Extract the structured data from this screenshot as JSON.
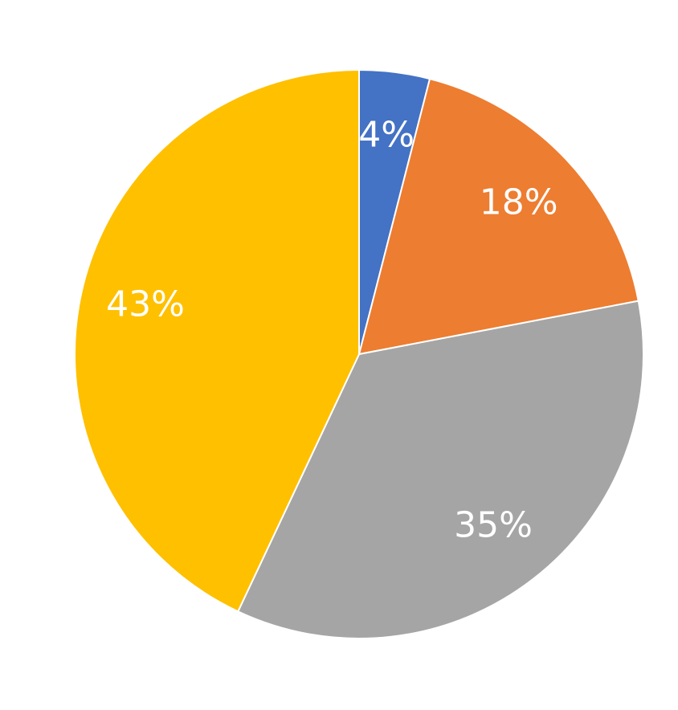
{
  "chart_data": {
    "type": "pie",
    "values": [
      4,
      18,
      35,
      43
    ],
    "value_labels": [
      "4%",
      "18%",
      "35%",
      "43%"
    ],
    "colors": [
      "#4472c4",
      "#ed7d31",
      "#a5a5a5",
      "#ffc000"
    ]
  }
}
